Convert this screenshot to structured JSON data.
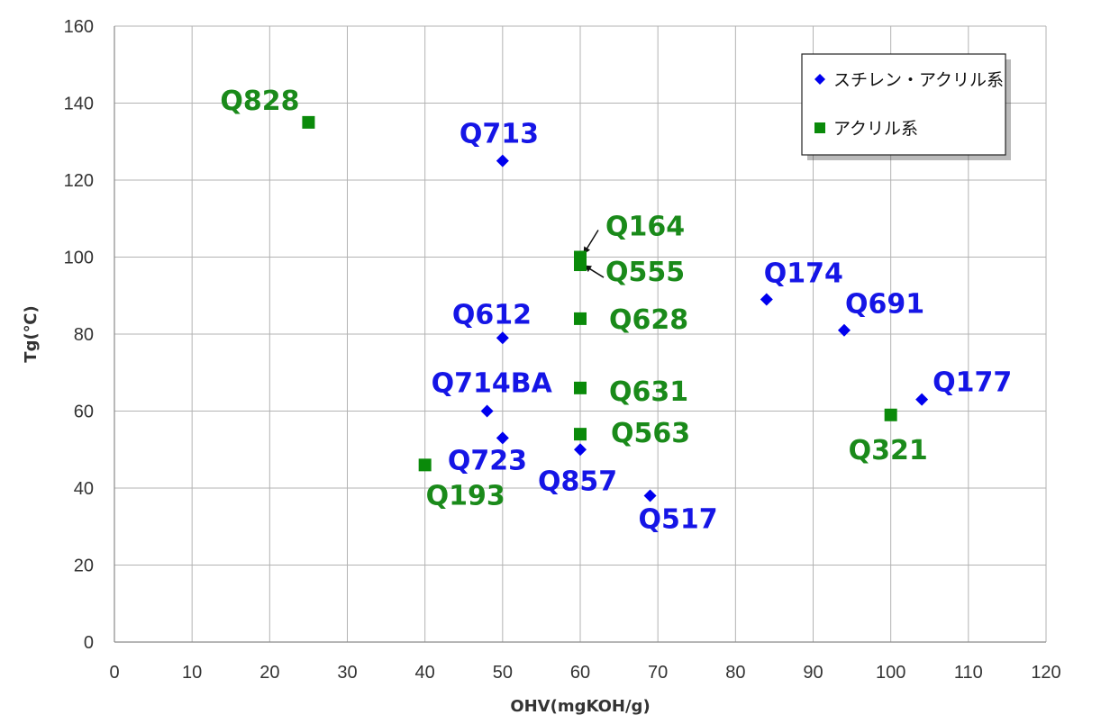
{
  "chart_data": {
    "type": "scatter",
    "title": "",
    "xlabel": "OHV(mgKOH/g)",
    "ylabel": "Tg(℃)",
    "xlim": [
      0,
      120
    ],
    "ylim": [
      0,
      160
    ],
    "x_ticks": [
      0,
      10,
      20,
      30,
      40,
      50,
      60,
      70,
      80,
      90,
      100,
      110,
      120
    ],
    "y_ticks": [
      0,
      20,
      40,
      60,
      80,
      100,
      120,
      140,
      160
    ],
    "grid": true,
    "legend_position": "top-right",
    "series": [
      {
        "name": "スチレン・アクリル系",
        "marker": "diamond",
        "color": "#0000ee",
        "label_color": "#1515e6",
        "points": [
          {
            "label": "Q713",
            "x": 50,
            "y": 125
          },
          {
            "label": "Q612",
            "x": 50,
            "y": 79
          },
          {
            "label": "Q714BA",
            "x": 48,
            "y": 60
          },
          {
            "label": "Q723",
            "x": 50,
            "y": 53
          },
          {
            "label": "Q857",
            "x": 60,
            "y": 50
          },
          {
            "label": "Q517",
            "x": 69,
            "y": 38
          },
          {
            "label": "Q174",
            "x": 84,
            "y": 89
          },
          {
            "label": "Q691",
            "x": 94,
            "y": 81
          },
          {
            "label": "Q177",
            "x": 104,
            "y": 63
          }
        ]
      },
      {
        "name": "アクリル系",
        "marker": "square",
        "color": "#0a8a0a",
        "label_color": "#1a8a1a",
        "points": [
          {
            "label": "Q828",
            "x": 25,
            "y": 135
          },
          {
            "label": "Q164",
            "x": 60,
            "y": 100
          },
          {
            "label": "Q555",
            "x": 60,
            "y": 98
          },
          {
            "label": "Q628",
            "x": 60,
            "y": 84
          },
          {
            "label": "Q631",
            "x": 60,
            "y": 66
          },
          {
            "label": "Q563",
            "x": 60,
            "y": 54
          },
          {
            "label": "Q193",
            "x": 40,
            "y": 46
          },
          {
            "label": "Q321",
            "x": 100,
            "y": 59
          }
        ]
      }
    ]
  }
}
